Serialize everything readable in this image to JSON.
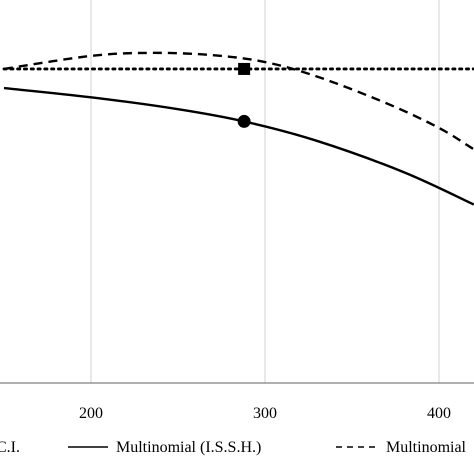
{
  "chart_data": {
    "type": "line",
    "title": "",
    "xlabel": "",
    "ylabel": "",
    "x_ticks": [
      200,
      300,
      400
    ],
    "x_tick_labels": [
      "200",
      "300",
      "400"
    ],
    "xlim": [
      150,
      420
    ],
    "ylim": [
      0,
      1
    ],
    "grid": {
      "vertical": true,
      "horizontal": false
    },
    "legend_position": "bottom",
    "series": [
      {
        "name": "C.I.",
        "style": "dotted",
        "color": "#000000",
        "x": [
          150,
          420
        ],
        "y": [
          0.82,
          0.82
        ]
      },
      {
        "name": "Multinomial (I.S.S.H.)",
        "style": "solid",
        "color": "#000000",
        "x": [
          150,
          200,
          250,
          288,
          330,
          380,
          420
        ],
        "y": [
          0.77,
          0.746,
          0.715,
          0.683,
          0.632,
          0.55,
          0.466
        ]
      },
      {
        "name": "Multinomial",
        "style": "dashed",
        "color": "#000000",
        "x": [
          150,
          200,
          235,
          270,
          300,
          330,
          370,
          400,
          420
        ],
        "y": [
          0.82,
          0.854,
          0.862,
          0.856,
          0.838,
          0.8,
          0.73,
          0.666,
          0.61
        ]
      }
    ],
    "markers": [
      {
        "shape": "square",
        "x": 288,
        "y": 0.82
      },
      {
        "shape": "circle",
        "x": 288,
        "y": 0.683
      }
    ]
  }
}
